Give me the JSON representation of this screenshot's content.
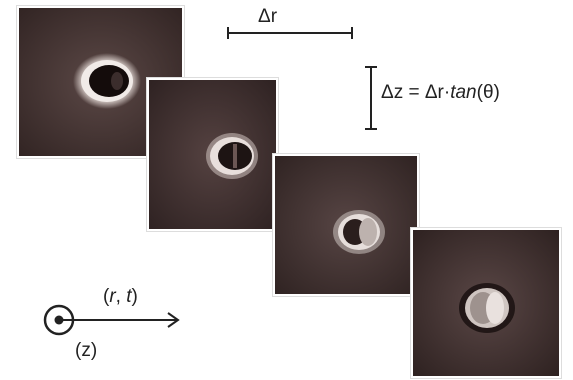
{
  "labels": {
    "delta_r": "Δr",
    "delta_z_prefix": "Δz = Δr·",
    "delta_z_tan": "tan",
    "delta_z_suffix": "(θ)",
    "r_t_open": "(",
    "r_t_r": "r",
    "r_t_mid": ", ",
    "r_t_t": "t",
    "r_t_close": ")",
    "z_axis": "(z)"
  },
  "colors": {
    "frame_bg": "#4a3a38",
    "frame_edge": "#2a1f1e",
    "particle_bright": "#e9e2df",
    "particle_dark": "#120b0a"
  },
  "frames": [
    {
      "name": "frame-1"
    },
    {
      "name": "frame-2"
    },
    {
      "name": "frame-3"
    },
    {
      "name": "frame-4"
    }
  ]
}
